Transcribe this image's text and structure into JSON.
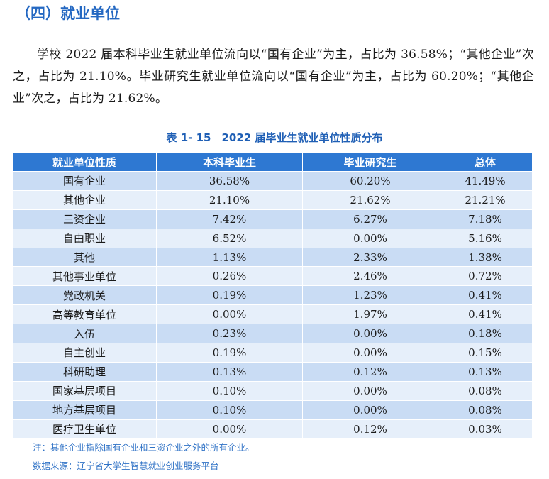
{
  "heading": "（四）就业单位",
  "paragraph": "学校 2022 届本科毕业生就业单位流向以“国有企业”为主，占比为 36.58%；“其他企业”次之，占比为 21.10%。毕业研究生就业单位流向以“国有企业”为主，占比为 60.20%；“其他企业”次之，占比为 21.62%。",
  "table_title": "表 1- 15　2022 届毕业生就业单位性质分布",
  "table": {
    "headers": [
      "就业单位性质",
      "本科毕业生",
      "毕业研究生",
      "总体"
    ],
    "rows": [
      [
        "国有企业",
        "36.58%",
        "60.20%",
        "41.49%"
      ],
      [
        "其他企业",
        "21.10%",
        "21.62%",
        "21.21%"
      ],
      [
        "三资企业",
        "7.42%",
        "6.27%",
        "7.18%"
      ],
      [
        "自由职业",
        "6.52%",
        "0.00%",
        "5.16%"
      ],
      [
        "其他",
        "1.13%",
        "2.33%",
        "1.38%"
      ],
      [
        "其他事业单位",
        "0.26%",
        "2.46%",
        "0.72%"
      ],
      [
        "党政机关",
        "0.19%",
        "1.23%",
        "0.41%"
      ],
      [
        "高等教育单位",
        "0.00%",
        "1.97%",
        "0.41%"
      ],
      [
        "入伍",
        "0.23%",
        "0.00%",
        "0.18%"
      ],
      [
        "自主创业",
        "0.19%",
        "0.00%",
        "0.15%"
      ],
      [
        "科研助理",
        "0.13%",
        "0.12%",
        "0.13%"
      ],
      [
        "国家基层项目",
        "0.10%",
        "0.00%",
        "0.08%"
      ],
      [
        "地方基层项目",
        "0.10%",
        "0.00%",
        "0.08%"
      ],
      [
        "医疗卫生单位",
        "0.00%",
        "0.12%",
        "0.03%"
      ]
    ]
  },
  "note": "注：其他企业指除国有企业和三资企业之外的所有企业。",
  "source": "数据来源：辽宁省大学生智慧就业创业服务平台",
  "colors": {
    "heading": "#2468c2",
    "header_bg": "#2e78d2",
    "row_dark": "#c9dcf4",
    "row_light": "#e6effa",
    "note": "#2f72c6"
  }
}
